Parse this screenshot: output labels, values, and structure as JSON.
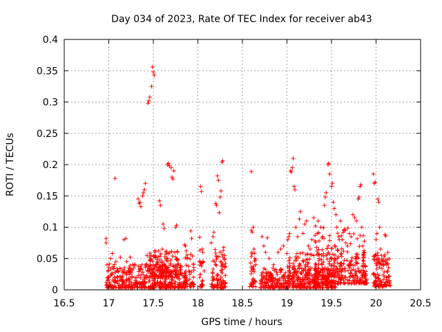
{
  "chart_data": {
    "type": "scatter",
    "title": "Day 034 of 2023, Rate Of TEC Index for receiver ab43",
    "xlabel": "GPS time / hours",
    "ylabel": "ROTI / TECUs",
    "xlim": [
      16.5,
      20.5
    ],
    "ylim": [
      0,
      0.4
    ],
    "x_ticks": [
      "16.5",
      "17",
      "17.5",
      "18",
      "18.5",
      "19",
      "19.5",
      "20",
      "20.5"
    ],
    "y_ticks": [
      "0",
      "0.05",
      "0.1",
      "0.15",
      "0.2",
      "0.25",
      "0.3",
      "0.35",
      "0.4"
    ],
    "grid": true,
    "marker": "plus",
    "marker_color": "#ff0000",
    "series": [
      {
        "points": [
          [
            16.97,
            0.082
          ],
          [
            16.97,
            0.075
          ],
          [
            16.98,
            0.04
          ],
          [
            16.99,
            0.03
          ],
          [
            17.0,
            0.02
          ],
          [
            17.01,
            0.012
          ],
          [
            17.02,
            0.05
          ],
          [
            17.03,
            0.025
          ],
          [
            17.04,
            0.058
          ],
          [
            17.05,
            0.035
          ],
          [
            17.07,
            0.178
          ],
          [
            17.08,
            0.045
          ],
          [
            17.1,
            0.02
          ],
          [
            17.12,
            0.015
          ],
          [
            17.13,
            0.052
          ],
          [
            17.15,
            0.03
          ],
          [
            17.17,
            0.08
          ],
          [
            17.19,
            0.082
          ],
          [
            17.2,
            0.045
          ],
          [
            17.22,
            0.03
          ],
          [
            17.24,
            0.052
          ],
          [
            17.26,
            0.02
          ],
          [
            17.28,
            0.035
          ],
          [
            17.3,
            0.015
          ],
          [
            17.33,
            0.145
          ],
          [
            17.34,
            0.138
          ],
          [
            17.35,
            0.14
          ],
          [
            17.36,
            0.133
          ],
          [
            17.37,
            0.04
          ],
          [
            17.38,
            0.15
          ],
          [
            17.39,
            0.155
          ],
          [
            17.4,
            0.16
          ],
          [
            17.41,
            0.17
          ],
          [
            17.42,
            0.04
          ],
          [
            17.43,
            0.055
          ],
          [
            17.44,
            0.298
          ],
          [
            17.45,
            0.302
          ],
          [
            17.46,
            0.308
          ],
          [
            17.47,
            0.048
          ],
          [
            17.48,
            0.325
          ],
          [
            17.49,
            0.356
          ],
          [
            17.5,
            0.348
          ],
          [
            17.51,
            0.343
          ],
          [
            17.52,
            0.055
          ],
          [
            17.54,
            0.04
          ],
          [
            17.56,
            0.062
          ],
          [
            17.57,
            0.142
          ],
          [
            17.58,
            0.135
          ],
          [
            17.6,
            0.065
          ],
          [
            17.61,
            0.105
          ],
          [
            17.62,
            0.098
          ],
          [
            17.64,
            0.06
          ],
          [
            17.66,
            0.2
          ],
          [
            17.67,
            0.202
          ],
          [
            17.68,
            0.198
          ],
          [
            17.7,
            0.195
          ],
          [
            17.71,
            0.18
          ],
          [
            17.72,
            0.177
          ],
          [
            17.73,
            0.19
          ],
          [
            17.74,
            0.06
          ],
          [
            17.75,
            0.1
          ],
          [
            17.76,
            0.103
          ],
          [
            17.77,
            0.04
          ],
          [
            17.8,
            0.025
          ],
          [
            17.85,
            0.072
          ],
          [
            17.86,
            0.07
          ],
          [
            17.87,
            0.062
          ],
          [
            17.88,
            0.05
          ],
          [
            17.9,
            0.03
          ],
          [
            17.92,
            0.094
          ],
          [
            17.93,
            0.082
          ],
          [
            17.95,
            0.02
          ],
          [
            18.02,
            0.084
          ],
          [
            18.03,
            0.165
          ],
          [
            18.04,
            0.157
          ],
          [
            18.05,
            0.065
          ],
          [
            18.06,
            0.045
          ],
          [
            18.07,
            0.03
          ],
          [
            18.15,
            0.075
          ],
          [
            18.17,
            0.085
          ],
          [
            18.18,
            0.092
          ],
          [
            18.2,
            0.138
          ],
          [
            18.21,
            0.135
          ],
          [
            18.22,
            0.182
          ],
          [
            18.23,
            0.175
          ],
          [
            18.24,
            0.123
          ],
          [
            18.25,
            0.148
          ],
          [
            18.26,
            0.158
          ],
          [
            18.27,
            0.204
          ],
          [
            18.28,
            0.206
          ],
          [
            18.29,
            0.068
          ],
          [
            18.3,
            0.055
          ],
          [
            18.31,
            0.042
          ],
          [
            18.6,
            0.189
          ],
          [
            18.6,
            0.095
          ],
          [
            18.61,
            0.092
          ],
          [
            18.62,
            0.1
          ],
          [
            18.63,
            0.065
          ],
          [
            18.64,
            0.05
          ],
          [
            18.65,
            0.04
          ],
          [
            18.72,
            0.085
          ],
          [
            18.74,
            0.07
          ],
          [
            18.76,
            0.06
          ],
          [
            18.78,
            0.083
          ],
          [
            18.8,
            0.05
          ],
          [
            18.85,
            0.04
          ],
          [
            18.9,
            0.06
          ],
          [
            18.93,
            0.065
          ],
          [
            18.96,
            0.07
          ],
          [
            19.0,
            0.058
          ],
          [
            19.01,
            0.08
          ],
          [
            19.02,
            0.085
          ],
          [
            19.03,
            0.09
          ],
          [
            19.04,
            0.19
          ],
          [
            19.05,
            0.188
          ],
          [
            19.06,
            0.195
          ],
          [
            19.07,
            0.21
          ],
          [
            19.08,
            0.165
          ],
          [
            19.09,
            0.16
          ],
          [
            19.1,
            0.1
          ],
          [
            19.12,
            0.085
          ],
          [
            19.14,
            0.113
          ],
          [
            19.15,
            0.125
          ],
          [
            19.18,
            0.09
          ],
          [
            19.2,
            0.105
          ],
          [
            19.22,
            0.11
          ],
          [
            19.24,
            0.07
          ],
          [
            19.26,
            0.065
          ],
          [
            19.28,
            0.08
          ],
          [
            19.3,
            0.115
          ],
          [
            19.32,
            0.102
          ],
          [
            19.34,
            0.09
          ],
          [
            19.35,
            0.11
          ],
          [
            19.36,
            0.078
          ],
          [
            19.38,
            0.1
          ],
          [
            19.4,
            0.085
          ],
          [
            19.42,
            0.135
          ],
          [
            19.43,
            0.148
          ],
          [
            19.44,
            0.155
          ],
          [
            19.46,
            0.2
          ],
          [
            19.47,
            0.202
          ],
          [
            19.48,
            0.185
          ],
          [
            19.5,
            0.165
          ],
          [
            19.51,
            0.17
          ],
          [
            19.52,
            0.14
          ],
          [
            19.53,
            0.13
          ],
          [
            19.55,
            0.12
          ],
          [
            19.56,
            0.1
          ],
          [
            19.58,
            0.085
          ],
          [
            19.6,
            0.11
          ],
          [
            19.62,
            0.08
          ],
          [
            19.64,
            0.095
          ],
          [
            19.66,
            0.075
          ],
          [
            19.68,
            0.07
          ],
          [
            19.7,
            0.09
          ],
          [
            19.72,
            0.085
          ],
          [
            19.74,
            0.12
          ],
          [
            19.76,
            0.115
          ],
          [
            19.78,
            0.11
          ],
          [
            19.8,
            0.145
          ],
          [
            19.81,
            0.148
          ],
          [
            19.82,
            0.165
          ],
          [
            19.83,
            0.168
          ],
          [
            19.84,
            0.1
          ],
          [
            19.85,
            0.07
          ],
          [
            19.86,
            0.06
          ],
          [
            19.97,
            0.185
          ],
          [
            19.98,
            0.17
          ],
          [
            19.99,
            0.172
          ],
          [
            20.0,
            0.08
          ],
          [
            20.01,
            0.09
          ],
          [
            20.02,
            0.145
          ],
          [
            20.03,
            0.14
          ],
          [
            20.04,
            0.1
          ],
          [
            20.05,
            0.065
          ],
          [
            20.06,
            0.055
          ],
          [
            20.08,
            0.045
          ],
          [
            20.1,
            0.088
          ],
          [
            20.11,
            0.086
          ],
          [
            20.12,
            0.04
          ],
          [
            20.13,
            0.03
          ],
          [
            20.14,
            0.022
          ],
          [
            20.15,
            0.015
          ]
        ]
      }
    ],
    "background_clusters": [
      {
        "x_range": [
          16.97,
          17.88
        ],
        "y_range": [
          0.003,
          0.042
        ],
        "count": 420
      },
      {
        "x_range": [
          17.45,
          17.78
        ],
        "y_range": [
          0.02,
          0.065
        ],
        "count": 140
      },
      {
        "x_range": [
          17.85,
          17.96
        ],
        "y_range": [
          0.005,
          0.06
        ],
        "count": 45
      },
      {
        "x_range": [
          18.02,
          18.06
        ],
        "y_range": [
          0.005,
          0.07
        ],
        "count": 25
      },
      {
        "x_range": [
          18.15,
          18.31
        ],
        "y_range": [
          0.003,
          0.065
        ],
        "count": 90
      },
      {
        "x_range": [
          18.58,
          18.65
        ],
        "y_range": [
          0.005,
          0.07
        ],
        "count": 35
      },
      {
        "x_range": [
          18.7,
          19.55
        ],
        "y_range": [
          0.003,
          0.035
        ],
        "count": 360
      },
      {
        "x_range": [
          19.0,
          19.9
        ],
        "y_range": [
          0.01,
          0.06
        ],
        "count": 300
      },
      {
        "x_range": [
          19.3,
          19.9
        ],
        "y_range": [
          0.02,
          0.1
        ],
        "count": 120
      },
      {
        "x_range": [
          19.96,
          20.16
        ],
        "y_range": [
          0.005,
          0.06
        ],
        "count": 110
      }
    ]
  }
}
